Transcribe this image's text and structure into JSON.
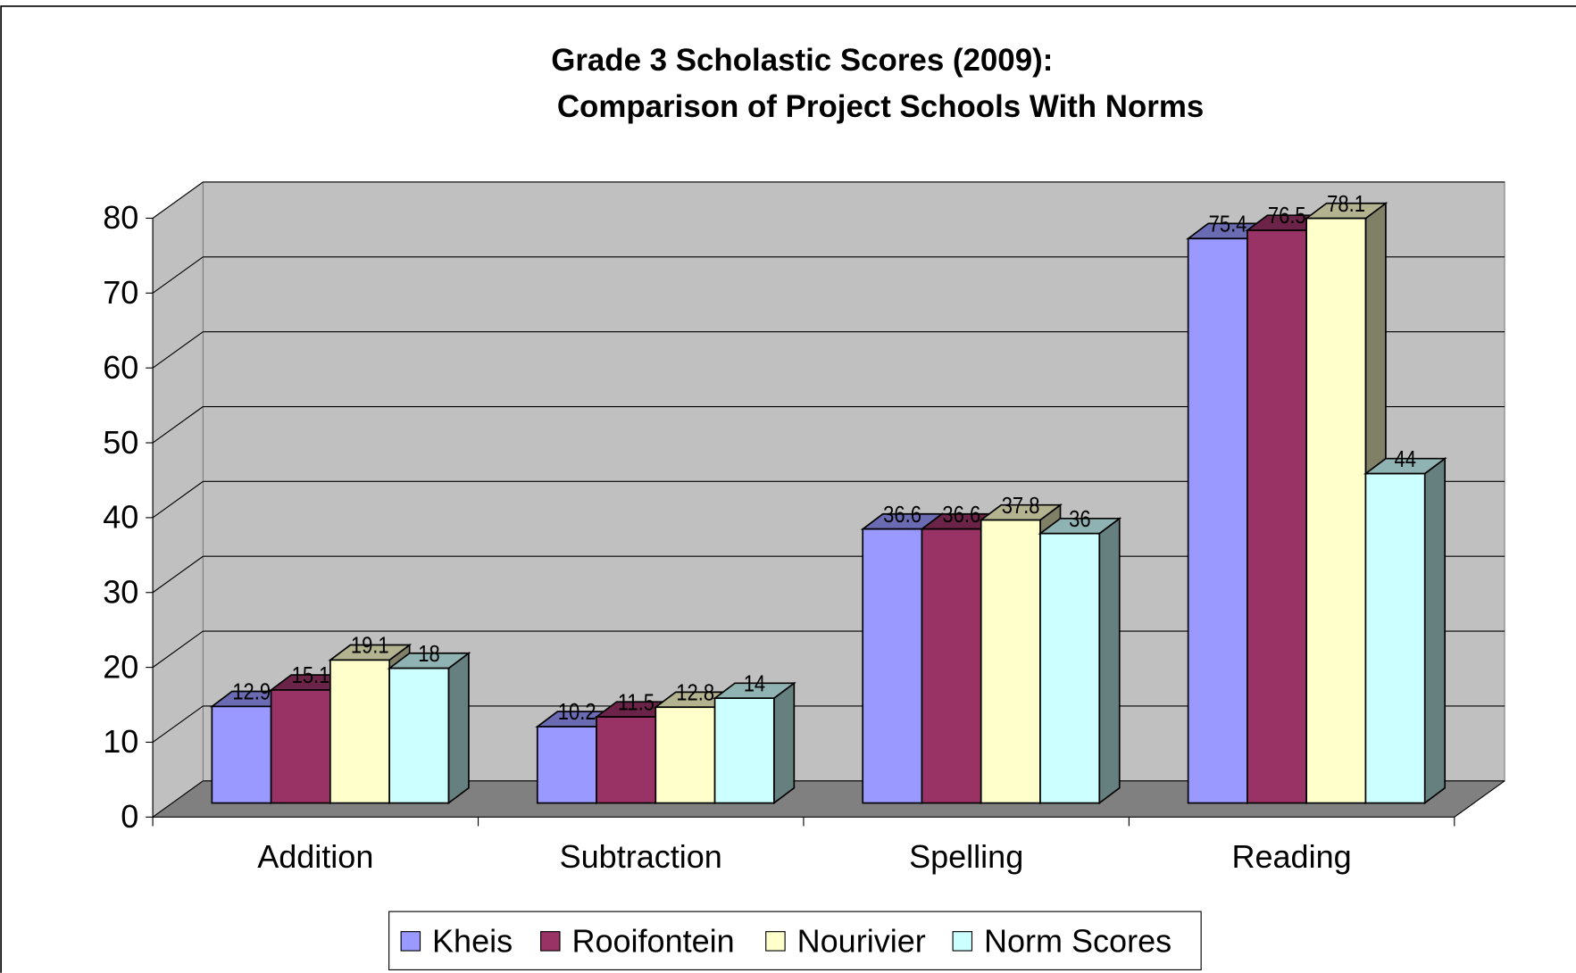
{
  "chart_data": {
    "type": "bar3d",
    "title": [
      "Grade 3 Scholastic Scores (2009):",
      "Comparison of Project Schools With Norms"
    ],
    "categories": [
      "Addition",
      "Subtraction",
      "Spelling",
      "Reading"
    ],
    "series": [
      {
        "name": "Kheis",
        "color": "#9999ff",
        "values": [
          12.9,
          10.2,
          36.6,
          75.4
        ]
      },
      {
        "name": "Rooifontein",
        "color": "#993366",
        "values": [
          15.1,
          11.5,
          36.6,
          76.5
        ]
      },
      {
        "name": "Nourivier",
        "color": "#ffffcc",
        "values": [
          19.1,
          12.8,
          37.8,
          78.1
        ]
      },
      {
        "name": "Norm Scores",
        "color": "#ccffff",
        "values": [
          18,
          14,
          36,
          44
        ]
      }
    ],
    "ylim": [
      0,
      80
    ],
    "yticks": [
      0,
      10,
      20,
      30,
      40,
      50,
      60,
      70,
      80
    ],
    "grid": true,
    "legend": "bottom"
  }
}
